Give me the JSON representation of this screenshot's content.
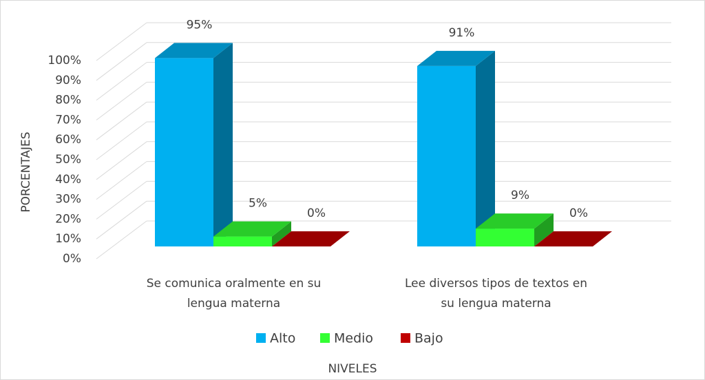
{
  "chart_data": {
    "type": "bar3d",
    "categories": [
      [
        "Se comunica oralmente en su",
        "lengua materna"
      ],
      [
        "Lee diversos tipos de textos en",
        "su lengua materna"
      ]
    ],
    "series": [
      {
        "name": "Alto",
        "color": "#00b0f0",
        "values": [
          95,
          91
        ],
        "value_labels": [
          "95%",
          "91%"
        ]
      },
      {
        "name": "Medio",
        "color": "#33ff33",
        "values": [
          5,
          9
        ],
        "value_labels": [
          "5%",
          "9%"
        ]
      },
      {
        "name": "Bajo",
        "color": "#c00000",
        "values": [
          0,
          0
        ],
        "value_labels": [
          "0%",
          "0%"
        ]
      }
    ],
    "ylim": [
      0,
      100
    ],
    "yticks": [
      {
        "value": 0,
        "label": "0%"
      },
      {
        "value": 10,
        "label": "10%"
      },
      {
        "value": 20,
        "label": "20%"
      },
      {
        "value": 30,
        "label": "30%"
      },
      {
        "value": 40,
        "label": "40%"
      },
      {
        "value": 50,
        "label": "50%"
      },
      {
        "value": 60,
        "label": "60%"
      },
      {
        "value": 70,
        "label": "70%"
      },
      {
        "value": 80,
        "label": "80%"
      },
      {
        "value": 90,
        "label": "90%"
      },
      {
        "value": 100,
        "label": "100%"
      }
    ],
    "ylabel": "PORCENTAJES",
    "xlabel": "NIVELES",
    "grid": true,
    "legend": "bottom"
  }
}
